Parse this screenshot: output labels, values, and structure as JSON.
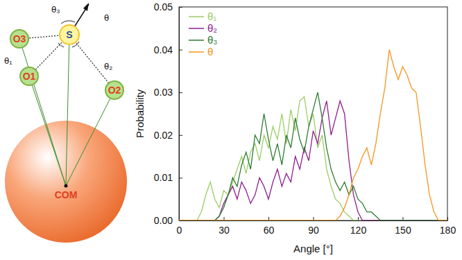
{
  "chart_data": {
    "type": "line",
    "x_label": "Angle [°]",
    "y_label": "Probability",
    "x": [
      0,
      3,
      6,
      9,
      12,
      15,
      18,
      21,
      24,
      27,
      30,
      33,
      36,
      39,
      42,
      45,
      48,
      51,
      54,
      57,
      60,
      63,
      66,
      69,
      72,
      75,
      78,
      81,
      84,
      87,
      90,
      93,
      96,
      99,
      102,
      105,
      108,
      111,
      114,
      117,
      120,
      123,
      126,
      129,
      132,
      135,
      138,
      141,
      144,
      147,
      150,
      153,
      156,
      159,
      162,
      165,
      168,
      171,
      174,
      177,
      180
    ],
    "series": [
      {
        "name": "θ₁",
        "color": "#9ccc65",
        "values": [
          0,
          0,
          0,
          0,
          0,
          0.002,
          0.006,
          0.009,
          0.005,
          0.003,
          0.007,
          0.006,
          0.009,
          0.012,
          0.015,
          0.011,
          0.016,
          0.018,
          0.014,
          0.02,
          0.017,
          0.022,
          0.019,
          0.025,
          0.018,
          0.026,
          0.021,
          0.028,
          0.029,
          0.022,
          0.025,
          0.017,
          0.02,
          0.012,
          0.008,
          0.005,
          0.004,
          0.002,
          0.001,
          0,
          0,
          0,
          0,
          0,
          0,
          0,
          0,
          0,
          0,
          0,
          0,
          0,
          0,
          0,
          0,
          0,
          0,
          0,
          0,
          0,
          0
        ]
      },
      {
        "name": "θ₂",
        "color": "#8e1f8e",
        "values": [
          0,
          0,
          0,
          0,
          0,
          0,
          0,
          0,
          0,
          0.001,
          0.004,
          0.006,
          0.008,
          0.005,
          0.009,
          0.007,
          0.004,
          0.006,
          0.01,
          0.008,
          0.005,
          0.009,
          0.012,
          0.008,
          0.011,
          0.009,
          0.015,
          0.012,
          0.017,
          0.014,
          0.021,
          0.018,
          0.024,
          0.028,
          0.02,
          0.024,
          0.028,
          0.025,
          0.014,
          0.006,
          0.002,
          0,
          0,
          0,
          0,
          0,
          0,
          0,
          0,
          0,
          0,
          0,
          0,
          0,
          0,
          0,
          0,
          0,
          0,
          0,
          0
        ]
      },
      {
        "name": "θ₃",
        "color": "#2e7d32",
        "values": [
          0,
          0,
          0,
          0,
          0,
          0,
          0,
          0,
          0,
          0.001,
          0.003,
          0.006,
          0.01,
          0.008,
          0.013,
          0.016,
          0.012,
          0.02,
          0.018,
          0.025,
          0.019,
          0.014,
          0.018,
          0.013,
          0.02,
          0.017,
          0.024,
          0.019,
          0.016,
          0.022,
          0.026,
          0.03,
          0.024,
          0.017,
          0.012,
          0.009,
          0.007,
          0.009,
          0.006,
          0.008,
          0.005,
          0.004,
          0.002,
          0.002,
          0.001,
          0,
          0,
          0,
          0,
          0,
          0,
          0,
          0,
          0,
          0,
          0,
          0,
          0,
          0,
          0,
          0
        ]
      },
      {
        "name": "θ",
        "color": "#f7941d",
        "values": [
          0,
          0,
          0,
          0,
          0,
          0,
          0,
          0,
          0,
          0,
          0,
          0,
          0,
          0,
          0,
          0,
          0,
          0,
          0,
          0,
          0,
          0,
          0,
          0,
          0,
          0,
          0,
          0,
          0,
          0,
          0,
          0,
          0,
          0,
          0,
          0,
          0.001,
          0.003,
          0.006,
          0.01,
          0.012,
          0.015,
          0.017,
          0.013,
          0.018,
          0.025,
          0.031,
          0.04,
          0.036,
          0.033,
          0.036,
          0.034,
          0.031,
          0.03,
          0.022,
          0.013,
          0.006,
          0.002,
          0,
          0,
          0
        ]
      }
    ],
    "xlim": [
      0,
      180
    ],
    "xticks": [
      0,
      30,
      60,
      90,
      120,
      150,
      180
    ],
    "ylim": [
      0,
      0.05
    ],
    "yticks": [
      {
        "value": 0,
        "label": "0.00"
      },
      {
        "value": 0.01,
        "label": "0.01"
      },
      {
        "value": 0.02,
        "label": "0.02"
      },
      {
        "value": 0.03,
        "label": "0.03"
      },
      {
        "value": 0.04,
        "label": "0.04"
      },
      {
        "value": 0.05,
        "label": "0.05"
      }
    ],
    "legend": "upper left"
  },
  "diagram": {
    "atoms": [
      "O3",
      "S",
      "O1",
      "O2"
    ],
    "center": "COM",
    "angles": [
      "θ₁",
      "θ₂",
      "θ₃",
      "θ"
    ]
  }
}
